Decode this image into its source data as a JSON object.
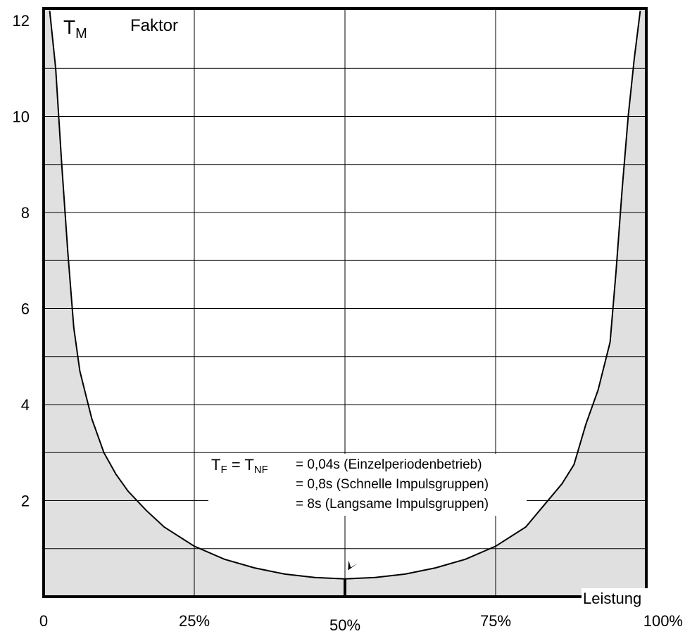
{
  "chart_data": {
    "type": "line",
    "title": "",
    "ylabel": "T_M Faktor",
    "ylabel_main": "T",
    "ylabel_sub": "M",
    "ylabel_word": "Faktor",
    "xlabel": "Leistung",
    "xlim": [
      0,
      100
    ],
    "ylim": [
      0,
      12.25
    ],
    "x_ticks": [
      {
        "value": 0,
        "label": "0"
      },
      {
        "value": 25,
        "label": "25%"
      },
      {
        "value": 50,
        "label": "50%"
      },
      {
        "value": 75,
        "label": "75%"
      },
      {
        "value": 100,
        "label": "100%"
      }
    ],
    "y_ticks": [
      {
        "value": 2,
        "label": "2"
      },
      {
        "value": 4,
        "label": "4"
      },
      {
        "value": 6,
        "label": "6"
      },
      {
        "value": 8,
        "label": "8"
      },
      {
        "value": 10,
        "label": "10"
      },
      {
        "value": 12,
        "label": "12"
      }
    ],
    "grid_x": [
      25,
      50,
      75
    ],
    "grid_y": [
      1,
      2,
      3,
      4,
      5,
      6,
      7,
      8,
      9,
      10,
      11
    ],
    "grid": true,
    "series": [
      {
        "x": [
          1,
          2,
          3,
          4,
          5,
          6,
          7,
          8,
          10,
          12,
          14,
          17,
          20,
          25,
          30,
          35,
          40,
          45,
          50,
          55,
          60,
          65,
          70,
          75,
          80,
          83,
          86,
          88,
          90,
          92,
          94,
          95,
          96,
          97,
          98,
          99
        ],
        "y": [
          12.2,
          11.0,
          9.0,
          7.2,
          5.6,
          4.7,
          4.2,
          3.7,
          3.0,
          2.55,
          2.2,
          1.8,
          1.45,
          1.05,
          0.78,
          0.6,
          0.47,
          0.4,
          0.37,
          0.4,
          0.47,
          0.6,
          0.78,
          1.05,
          1.45,
          1.9,
          2.35,
          2.75,
          3.6,
          4.3,
          5.3,
          6.8,
          8.5,
          10.0,
          11.2,
          12.2
        ],
        "shading": "#e0e0e0"
      }
    ],
    "annotation": {
      "lhs_a": "T",
      "lhs_a_sub": "F",
      "lhs_eq": " = ",
      "lhs_b": "T",
      "lhs_b_sub": "NF",
      "lines": [
        "= 0,04s (Einzelperiodenbetrieb)",
        "= 0,8s (Schnelle Impulsgruppen)",
        "= 8s (Langsame Impulsgruppen)"
      ]
    }
  }
}
